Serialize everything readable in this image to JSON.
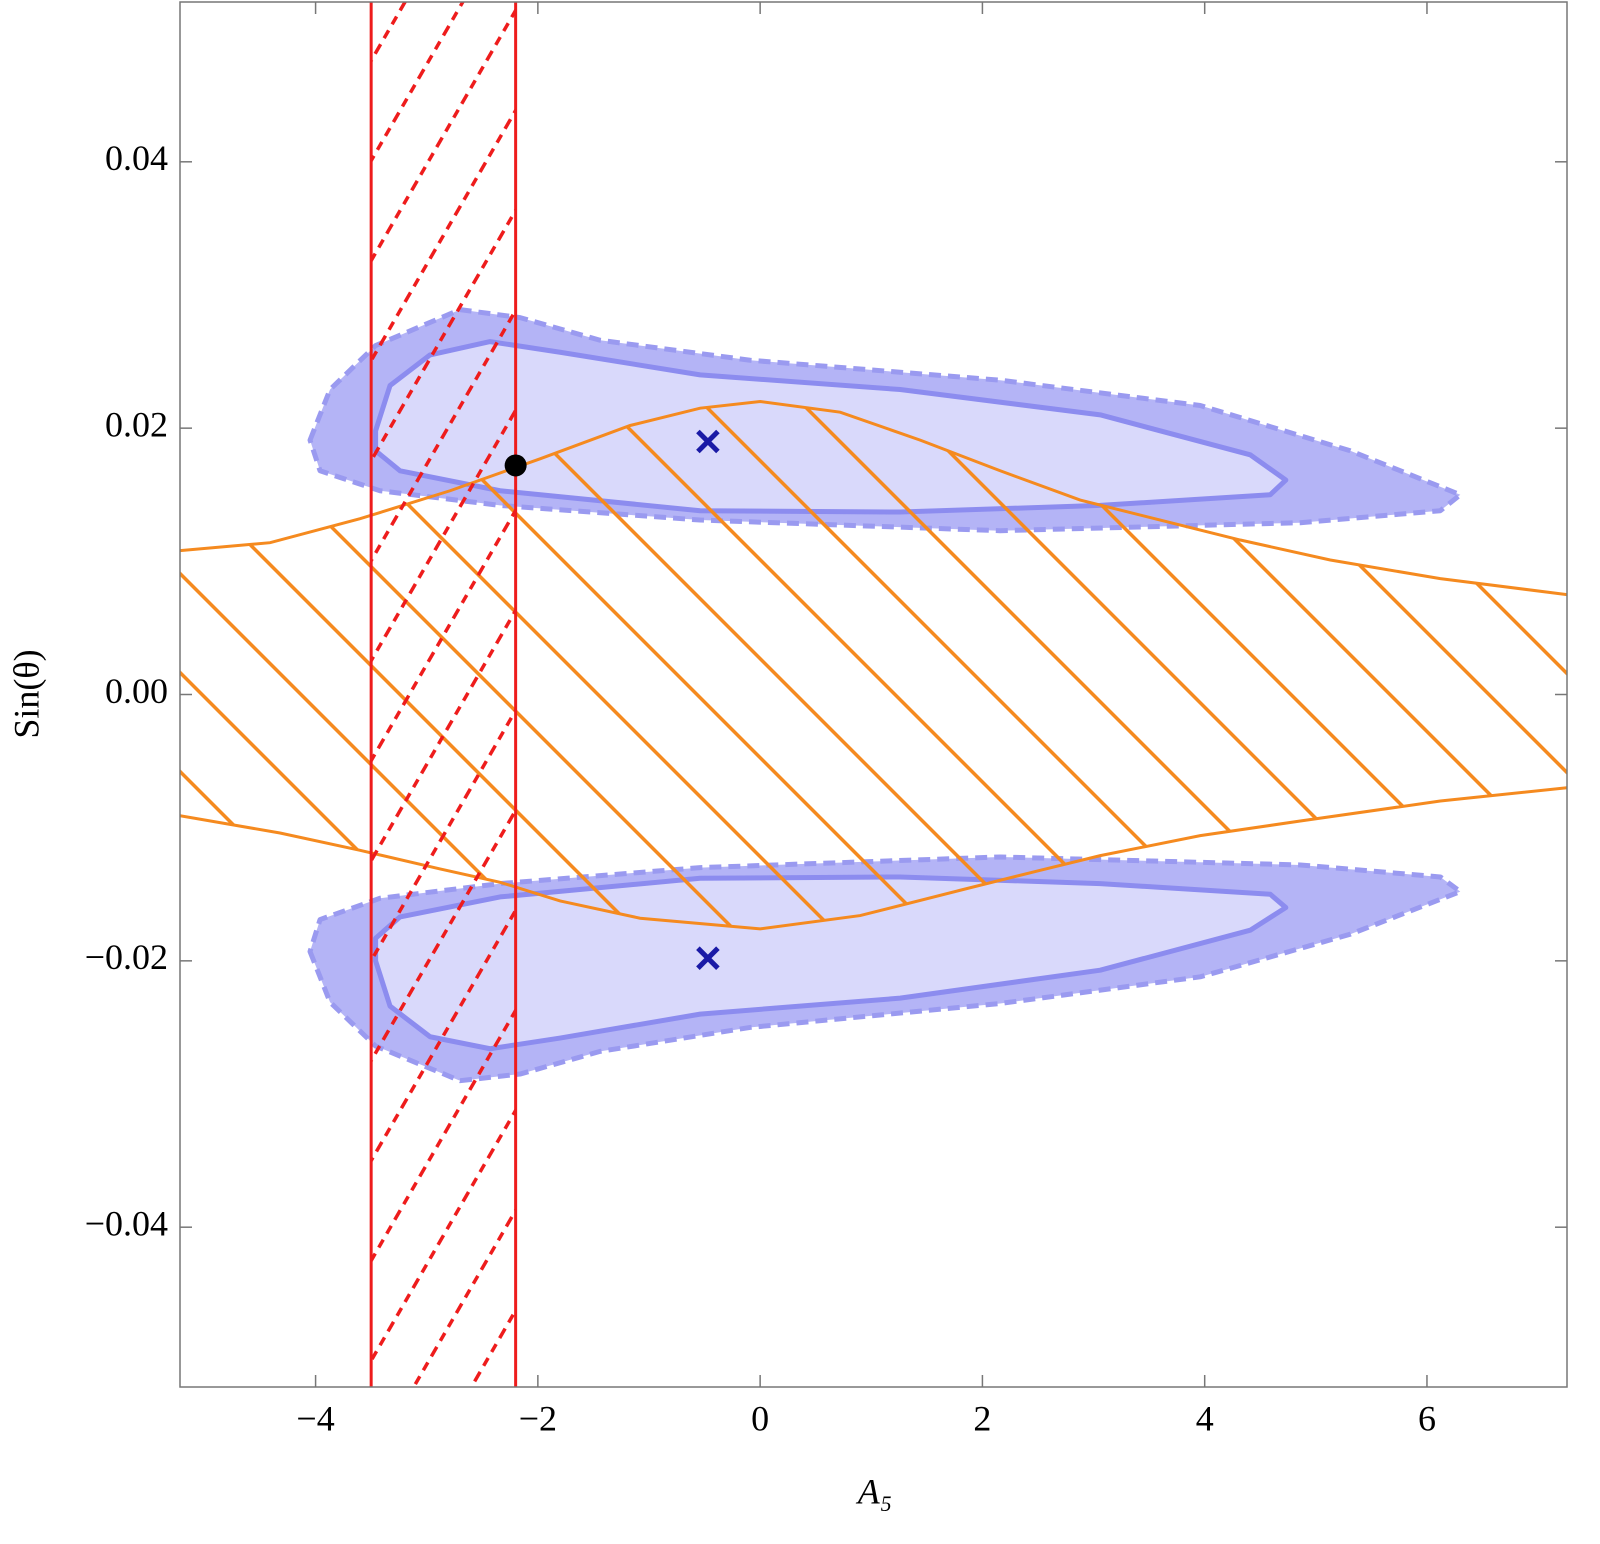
{
  "chart_data": {
    "type": "contour",
    "xlabel": "A₅",
    "ylabel": "Sin(θ)",
    "xlim": [
      -5.22,
      7.26
    ],
    "ylim": [
      -0.052,
      0.052
    ],
    "xticks": [
      {
        "value": -4,
        "label": "−4"
      },
      {
        "value": -2,
        "label": "−2"
      },
      0,
      2,
      4,
      6
    ],
    "yticks": [
      {
        "value": -0.04,
        "label": "−0.04"
      },
      {
        "value": -0.02,
        "label": "−0.02"
      },
      {
        "value": 0,
        "label": "0.00"
      },
      0.02,
      0.04
    ],
    "regions": [
      {
        "fill": "#b4b4f6",
        "stroke": "#9a9af0",
        "dashed": true,
        "x": [
          -4.05,
          -3.87,
          -3.46,
          -2.7,
          -2.16,
          -1.44,
          -0.09,
          2.16,
          3.96,
          5.31,
          6.3,
          6.12,
          4.86,
          2.16,
          -0.54,
          -2.34,
          -3.42,
          -3.96
        ],
        "y": [
          0.0191,
          0.0229,
          0.0262,
          0.0289,
          0.0283,
          0.0266,
          0.0251,
          0.0236,
          0.0217,
          0.0183,
          0.015,
          0.0138,
          0.0129,
          0.0123,
          0.0131,
          0.0142,
          0.0153,
          0.0168
        ]
      },
      {
        "fill": "#d9d9fb",
        "stroke": "#8c8cef",
        "dashed": false,
        "x": [
          -3.46,
          -3.33,
          -2.97,
          -2.43,
          -1.8,
          -0.54,
          1.26,
          3.06,
          4.41,
          4.73,
          4.59,
          3.06,
          1.26,
          -0.54,
          -2.34,
          -3.24,
          -3.46
        ],
        "y": [
          0.0198,
          0.0232,
          0.0255,
          0.0265,
          0.0257,
          0.024,
          0.0229,
          0.021,
          0.018,
          0.0161,
          0.015,
          0.0142,
          0.0137,
          0.0138,
          0.0153,
          0.0168,
          0.0183
        ]
      },
      {
        "fill": "#b4b4f6",
        "stroke": "#9a9af0",
        "dashed": true,
        "x": [
          -4.05,
          -3.87,
          -3.46,
          -2.7,
          -2.16,
          -1.44,
          -0.09,
          2.16,
          3.96,
          5.31,
          6.3,
          6.12,
          4.86,
          2.16,
          -0.54,
          -2.34,
          -3.42,
          -3.96
        ],
        "y": [
          -0.0193,
          -0.0231,
          -0.0264,
          -0.029,
          -0.0285,
          -0.0268,
          -0.025,
          -0.0232,
          -0.0212,
          -0.018,
          -0.0148,
          -0.0137,
          -0.0128,
          -0.0122,
          -0.013,
          -0.0142,
          -0.0153,
          -0.0169
        ]
      },
      {
        "fill": "#d9d9fb",
        "stroke": "#8c8cef",
        "dashed": false,
        "x": [
          -3.46,
          -3.33,
          -2.97,
          -2.43,
          -1.8,
          -0.54,
          1.26,
          3.06,
          4.41,
          4.73,
          4.59,
          3.06,
          1.26,
          -0.54,
          -2.34,
          -3.24,
          -3.46
        ],
        "y": [
          -0.02,
          -0.0234,
          -0.0257,
          -0.0266,
          -0.0258,
          -0.024,
          -0.0228,
          -0.0207,
          -0.0177,
          -0.016,
          -0.015,
          -0.0142,
          -0.0137,
          -0.0138,
          -0.0152,
          -0.0167,
          -0.0183
        ]
      }
    ],
    "band": {
      "color": "#f58a1f",
      "upper": {
        "x": [
          -5.22,
          -4.41,
          -3.6,
          -2.79,
          -1.98,
          -1.17,
          -0.54,
          0.0,
          0.72,
          1.44,
          2.16,
          2.88,
          3.6,
          4.32,
          5.13,
          6.12,
          7.26
        ],
        "y": [
          0.0108,
          0.0114,
          0.0132,
          0.0153,
          0.0177,
          0.0202,
          0.0215,
          0.022,
          0.0212,
          0.0191,
          0.0168,
          0.0146,
          0.0131,
          0.0116,
          0.0101,
          0.0087,
          0.0075
        ]
      },
      "lower": {
        "x": [
          -5.22,
          -4.32,
          -3.6,
          -2.88,
          -2.34,
          -1.8,
          -1.08,
          0.0,
          0.9,
          1.8,
          2.52,
          3.06,
          3.96,
          4.86,
          6.12,
          7.26
        ],
        "y": [
          -0.0091,
          -0.0104,
          -0.0117,
          -0.0131,
          -0.0141,
          -0.0155,
          -0.0168,
          -0.0176,
          -0.0166,
          -0.0147,
          -0.0132,
          -0.0121,
          -0.0106,
          -0.0095,
          -0.008,
          -0.007
        ]
      }
    },
    "vband": {
      "x": [
        -3.5,
        -2.2
      ],
      "color": "#ee1c1c"
    },
    "dot": {
      "x": -2.2,
      "y": 0.0172,
      "color": "#000000"
    },
    "crosses": {
      "x": [
        -0.47,
        -0.47
      ],
      "y": [
        0.019,
        -0.0198
      ],
      "color": "#1a1aa6"
    }
  }
}
